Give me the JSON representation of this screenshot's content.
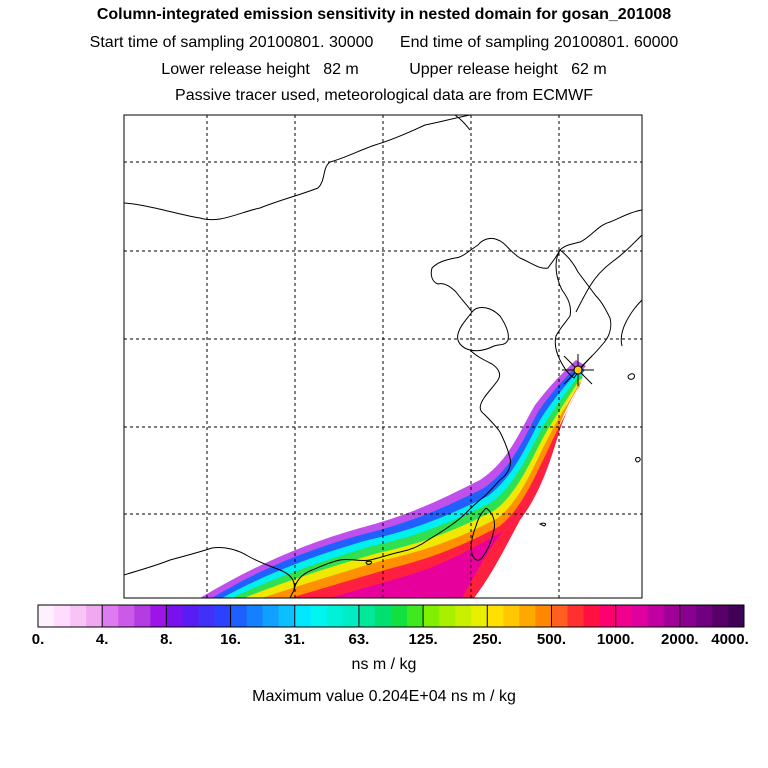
{
  "title": {
    "main": "Column-integrated emission sensitivity in nested domain for gosan_201008",
    "start_label": "Start time of sampling",
    "start_value": "20100801. 30000",
    "end_label": "End time of sampling",
    "end_value": "20100801. 60000",
    "lower_label": "Lower release height",
    "lower_value": "82 m",
    "upper_label": "Upper release height",
    "upper_value": "62 m",
    "tracer_note": "Passive tracer used, meteorological data are from ECMWF"
  },
  "colorbar": {
    "tick_labels": [
      "0.",
      "4.",
      "8.",
      "16.",
      "31.",
      "63.",
      "125.",
      "250.",
      "500.",
      "1000.",
      "2000.",
      "4000."
    ],
    "colors": [
      "#fff0ff",
      "#ffdcff",
      "#f8c4f8",
      "#f0a8f0",
      "#dc7cf0",
      "#cc5ae8",
      "#b43ce0",
      "#9c14e8",
      "#7a10ee",
      "#5a1cf4",
      "#4030f8",
      "#2c40ff",
      "#1c60ff",
      "#1480ff",
      "#10a0ff",
      "#0cc0ff",
      "#00e8ff",
      "#00f4f0",
      "#00f0d8",
      "#00ecc4",
      "#00e898",
      "#00e070",
      "#10e040",
      "#40e820",
      "#80f000",
      "#a8f000",
      "#c8f000",
      "#e8f000",
      "#ffe000",
      "#ffc800",
      "#ffa800",
      "#ff8800",
      "#ff6020",
      "#ff3030",
      "#ff1040",
      "#ff0070",
      "#f0008c",
      "#e000a0",
      "#c000a0",
      "#a00098",
      "#880090",
      "#700080",
      "#580068",
      "#400058"
    ],
    "units": "ns m / kg"
  },
  "max_value_text": "Maximum value  0.204E+04 ns m / kg",
  "map": {
    "release_site": "Gosan",
    "marker": "star-marker"
  }
}
